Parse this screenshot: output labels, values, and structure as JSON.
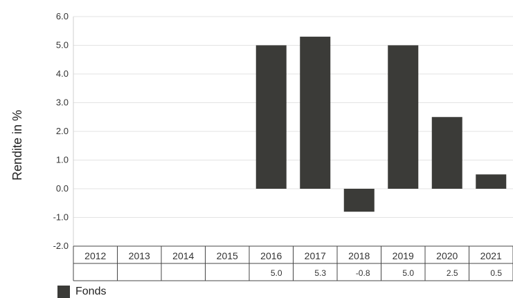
{
  "chart_data": {
    "type": "bar",
    "title": "",
    "xlabel": "",
    "ylabel": "Rendite in %",
    "categories": [
      "2012",
      "2013",
      "2014",
      "2015",
      "2016",
      "2017",
      "2018",
      "2019",
      "2020",
      "2021"
    ],
    "series": [
      {
        "name": "Fonds",
        "color": "#3b3b38",
        "values": [
          null,
          null,
          null,
          null,
          5.0,
          5.3,
          -0.8,
          5.0,
          2.5,
          0.5
        ],
        "value_labels": [
          "",
          "",
          "",
          "",
          "5.0",
          "5.3",
          "-0.8",
          "5.0",
          "2.5",
          "0.5"
        ]
      }
    ],
    "ylim": [
      -2.0,
      6.0
    ],
    "yticks": [
      6.0,
      5.0,
      4.0,
      3.0,
      2.0,
      1.0,
      0.0,
      -1.0,
      -2.0
    ],
    "ytick_labels": [
      "6.0",
      "5.0",
      "4.0",
      "3.0",
      "2.0",
      "1.0",
      "0.0",
      "-1.0",
      "-2.0"
    ],
    "grid": true,
    "legend_position": "bottom-left",
    "data_table": true
  },
  "legend": {
    "label": "Fonds"
  }
}
